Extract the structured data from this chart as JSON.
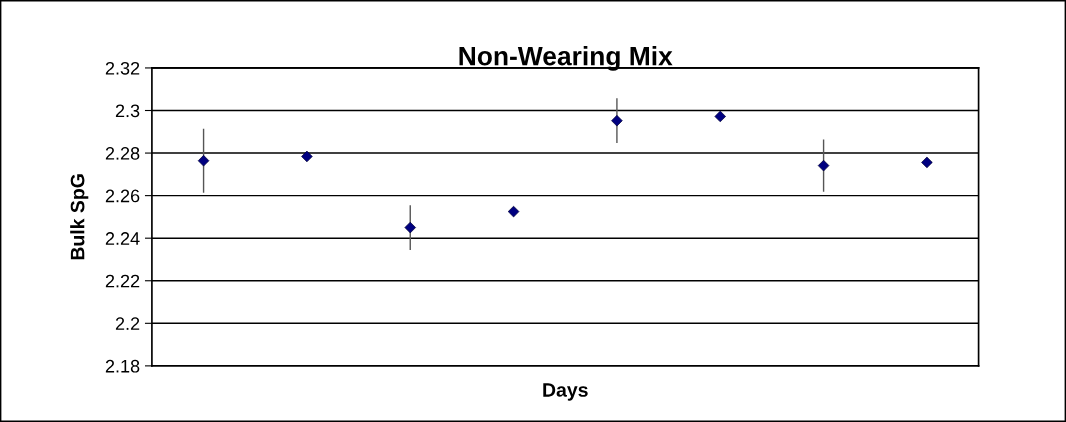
{
  "chart_data": {
    "type": "scatter",
    "title": "Non-Wearing Mix",
    "xlabel": "Days",
    "ylabel": "Bulk SpG",
    "categories": [
      null,
      null,
      null,
      null,
      null,
      null,
      null,
      null
    ],
    "values": [
      2.2764,
      2.2784,
      2.245,
      2.2525,
      2.2952,
      2.2972,
      2.2741,
      2.2756
    ],
    "errors": [
      0.015,
      null,
      0.0105,
      null,
      0.0105,
      null,
      0.0123,
      null
    ],
    "color": "#000080",
    "marker": "diamond",
    "grid": "y",
    "ylim": [
      2.18,
      2.32
    ],
    "yticks": [
      2.18,
      2.2,
      2.22,
      2.24,
      2.26,
      2.28,
      2.3,
      2.32
    ],
    "tick_labels": "y"
  }
}
